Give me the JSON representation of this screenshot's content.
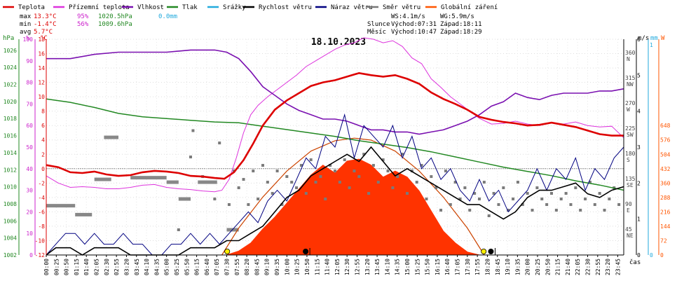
{
  "chart_data": {
    "type": "line",
    "title": "18.10.2023",
    "x_label": "čas",
    "x_ticks": [
      "00:00",
      "00:25",
      "00:50",
      "01:15",
      "01:40",
      "02:05",
      "02:30",
      "02:55",
      "03:20",
      "03:45",
      "04:10",
      "04:35",
      "05:00",
      "05:25",
      "05:50",
      "06:15",
      "06:40",
      "07:05",
      "07:30",
      "07:55",
      "08:20",
      "08:45",
      "09:10",
      "09:35",
      "10:00",
      "10:25",
      "10:50",
      "11:15",
      "11:40",
      "12:05",
      "12:30",
      "12:55",
      "13:20",
      "13:45",
      "14:10",
      "14:35",
      "15:00",
      "15:25",
      "15:50",
      "16:15",
      "16:40",
      "17:05",
      "17:30",
      "17:55",
      "18:20",
      "18:45",
      "19:10",
      "19:35",
      "20:00",
      "20:25",
      "20:50",
      "21:15",
      "21:40",
      "22:05",
      "22:30",
      "22:55",
      "23:20",
      "23:45"
    ],
    "legend": [
      {
        "name": "Teplota",
        "color": "#dd0000"
      },
      {
        "name": "Přízemní teplota",
        "color": "#dd33dd"
      },
      {
        "name": "Vlhkost",
        "color": "#7a10b0"
      },
      {
        "name": "Tlak",
        "color": "#228822"
      },
      {
        "name": "Srážky",
        "color": "#22aadd"
      },
      {
        "name": "Rychlost větru",
        "color": "#000000"
      },
      {
        "name": "Náraz větru",
        "color": "#000080"
      },
      {
        "name": "Směr větru",
        "color": "#777777"
      },
      {
        "name": "Globální záření",
        "color": "#ff5500"
      }
    ],
    "stats": {
      "max_label": "max",
      "max_temp": "13.3°C",
      "max_hum": "95%",
      "max_press": "1020.5hPa",
      "rain": "0.0mm",
      "min_label": "min",
      "min_temp": "-1.4°C",
      "min_hum": "56%",
      "min_press": "1009.6hPa",
      "avg_label": "avg",
      "avg_temp": "5.7°C",
      "ws": "WS:4.1m/s",
      "wg": "WG:5.9m/s",
      "sun_label": "Slunce",
      "sun_rise": "Východ:07:31",
      "sun_set": "Západ:18:11",
      "moon_label": "Měsíc",
      "moon_rise": "Východ:10:47",
      "moon_set": "Západ:18:29"
    },
    "axes": {
      "pressure": {
        "unit": "hPa",
        "ticks": [
          "1026",
          "1024",
          "1022",
          "1020",
          "1018",
          "1016",
          "1014",
          "1012",
          "1010",
          "1008",
          "1006",
          "1004",
          "1002"
        ],
        "range": [
          1002,
          1027.3
        ],
        "color": "#228822"
      },
      "humidity": {
        "unit": "%",
        "ticks": [
          "100",
          "90",
          "80",
          "70",
          "60",
          "50",
          "40",
          "30",
          "20",
          "10",
          "0"
        ],
        "range": [
          0,
          100
        ],
        "color": "#cc22cc"
      },
      "temperature": {
        "unit": "°C",
        "ticks": [
          "18",
          "16",
          "14",
          "12",
          "10",
          "8",
          "6",
          "4",
          "2",
          "0",
          "-2",
          "-4",
          "-6",
          "-8",
          "-10",
          "-12"
        ],
        "range": [
          -12,
          18
        ],
        "color": "#dd0000"
      },
      "direction": {
        "ticks": [
          "360",
          "N",
          "315",
          "NW",
          "270",
          "W",
          "225",
          "SW",
          "180",
          "S",
          "135",
          "SE",
          "90",
          "E",
          "45",
          "NE"
        ],
        "range": [
          0,
          360
        ]
      },
      "wind": {
        "unit": "m/s",
        "ticks": [
          "6",
          "5",
          "4",
          "3",
          "2",
          "1",
          "0"
        ],
        "range": [
          0,
          6
        ]
      },
      "rain": {
        "unit": "mm",
        "ticks": [
          "1",
          "0"
        ],
        "range": [
          0,
          1
        ],
        "color": "#22aadd"
      },
      "radiation": {
        "unit": "W",
        "ticks": [
          "648",
          "576",
          "504",
          "432",
          "360",
          "288",
          "216",
          "144",
          "72",
          "0"
        ],
        "range": [
          0,
          1080
        ],
        "color": "#ff5500"
      }
    },
    "series": {
      "temperature_x_h": [
        0,
        0.5,
        1,
        1.5,
        2,
        2.5,
        3,
        3.5,
        4,
        4.5,
        5,
        5.5,
        6,
        6.5,
        7,
        7.4,
        7.8,
        8.2,
        8.6,
        9,
        9.5,
        10,
        10.5,
        11,
        11.5,
        12,
        12.5,
        13,
        13.5,
        14,
        14.5,
        15,
        15.5,
        16,
        16.5,
        17,
        17.5,
        18,
        18.5,
        19,
        19.5,
        20,
        20.5,
        21,
        21.5,
        22,
        22.5,
        23,
        23.5,
        24
      ],
      "temperature": [
        0.5,
        0.2,
        -0.5,
        -0.6,
        -0.4,
        -0.8,
        -1,
        -0.9,
        -0.5,
        -0.3,
        -0.4,
        -0.6,
        -1,
        -1.1,
        -1.3,
        -1.4,
        -0.5,
        1.2,
        3.5,
        6,
        8.2,
        9.5,
        10.5,
        11.5,
        12,
        12.3,
        12.8,
        13.3,
        13,
        12.8,
        13,
        12.5,
        11.8,
        10.6,
        9.7,
        9,
        8.2,
        7.2,
        6.8,
        6.5,
        6.3,
        6,
        6.1,
        6.4,
        6.1,
        5.8,
        5.3,
        4.8,
        4.6,
        4.6
      ],
      "ground_temp_x_h": [
        0,
        0.5,
        1,
        1.5,
        2,
        2.5,
        3,
        3.5,
        4,
        4.5,
        5,
        5.5,
        6,
        6.5,
        7,
        7.3,
        7.6,
        7.9,
        8.2,
        8.5,
        8.8,
        9.2,
        9.6,
        10,
        10.4,
        10.8,
        11.2,
        11.6,
        12,
        12.4,
        12.8,
        13.2,
        13.6,
        14,
        14.4,
        14.8,
        15.2,
        15.6,
        16,
        16.4,
        16.8,
        17.2,
        17.6,
        18,
        18.5,
        19,
        19.5,
        20,
        20.5,
        21,
        21.5,
        22,
        22.5,
        23,
        23.5,
        24
      ],
      "ground_temp": [
        -1,
        -2,
        -2.6,
        -2.5,
        -2.6,
        -2.8,
        -2.8,
        -2.6,
        -2.3,
        -2.2,
        -2.6,
        -2.8,
        -2.9,
        -3.1,
        -3.2,
        -3,
        -1.5,
        1.5,
        5,
        7.5,
        8.8,
        10,
        11,
        12,
        13,
        14.2,
        15,
        15.8,
        16.6,
        17.2,
        17.5,
        18.2,
        18,
        17.5,
        17.8,
        17,
        15.4,
        14.6,
        12.5,
        11.3,
        10,
        9,
        8,
        7,
        6.2,
        6.3,
        6.6,
        6.2,
        6,
        6.4,
        6.2,
        6.5,
        6,
        5.8,
        5.9,
        4.3
      ],
      "humidity_x_h": [
        0,
        1,
        2,
        3,
        4,
        5,
        6,
        7,
        7.5,
        8,
        8.5,
        9,
        9.5,
        10,
        10.5,
        11,
        11.5,
        12,
        12.5,
        13,
        13.5,
        14,
        14.5,
        15,
        15.5,
        16,
        16.5,
        17,
        17.5,
        18,
        18.5,
        19,
        19.5,
        20,
        20.5,
        21,
        21.5,
        22,
        22.5,
        23,
        23.5,
        24
      ],
      "humidity": [
        91,
        91,
        93,
        94,
        94,
        94,
        95,
        95,
        94,
        91,
        85,
        78,
        74,
        70,
        67,
        65,
        63,
        63,
        62,
        60,
        58,
        58,
        57,
        57,
        56,
        57,
        58,
        60,
        62,
        65,
        69,
        71,
        75,
        73,
        72,
        74,
        75,
        75,
        75,
        76,
        76,
        77
      ],
      "pressure_x_h": [
        0,
        1,
        2,
        3,
        4,
        5,
        6,
        7,
        8,
        9,
        10,
        11,
        12,
        13,
        14,
        15,
        16,
        17,
        18,
        19,
        20,
        21,
        22,
        23,
        24
      ],
      "pressure": [
        1020.3,
        1019.9,
        1019.3,
        1018.6,
        1018.2,
        1018,
        1017.8,
        1017.6,
        1017.5,
        1017.1,
        1016.7,
        1016.3,
        1015.9,
        1015.4,
        1015,
        1014.6,
        1014.1,
        1013.5,
        1012.9,
        1012.3,
        1011.8,
        1011.3,
        1010.7,
        1010.2,
        1009.6
      ],
      "radiation_x_h": [
        7.5,
        8,
        8.5,
        9,
        9.5,
        10,
        10.5,
        11,
        11.5,
        12,
        12.5,
        13,
        13.5,
        14,
        14.5,
        15,
        15.5,
        16,
        16.5,
        17,
        17.5,
        18
      ],
      "radiation": [
        0,
        20,
        60,
        130,
        190,
        260,
        330,
        400,
        450,
        410,
        470,
        480,
        450,
        390,
        420,
        390,
        320,
        220,
        120,
        60,
        15,
        0
      ],
      "clear_sky_x_h": [
        7.3,
        8,
        9,
        10,
        11,
        12,
        12.8,
        13.5,
        14.5,
        15.5,
        16.5,
        17.5,
        18.2
      ],
      "clear_sky": [
        0,
        135,
        290,
        420,
        520,
        572,
        585,
        575,
        520,
        420,
        290,
        135,
        0
      ],
      "wind_speed_x_h": [
        0,
        0.4,
        1,
        1.5,
        2,
        2.5,
        3,
        3.5,
        4,
        4.5,
        5,
        5.5,
        6,
        6.5,
        7,
        7.5,
        8,
        8.5,
        9,
        9.5,
        10,
        10.5,
        11,
        11.5,
        12,
        12.5,
        13,
        13.5,
        14,
        14.5,
        15,
        15.5,
        16,
        16.5,
        17,
        17.5,
        18,
        18.5,
        19,
        19.5,
        20,
        20.5,
        21,
        21.5,
        22,
        22.5,
        23,
        23.5,
        24
      ],
      "wind_speed": [
        0,
        0.2,
        0.2,
        0,
        0.2,
        0.2,
        0.2,
        0,
        0,
        0,
        0,
        0,
        0.2,
        0.2,
        0.2,
        0.4,
        0.4,
        0.6,
        0.8,
        1.2,
        1.6,
        1.8,
        2.2,
        2.4,
        2.6,
        2.8,
        2.6,
        3,
        2.6,
        2.2,
        2.4,
        2.2,
        2,
        1.8,
        1.6,
        1.4,
        1.4,
        1.2,
        1,
        1.2,
        1.6,
        1.8,
        1.8,
        1.9,
        2,
        1.7,
        1.6,
        1.8,
        1.9
      ],
      "wind_gust_x_h": [
        0,
        0.4,
        0.8,
        1.2,
        1.6,
        2,
        2.4,
        2.8,
        3.2,
        3.6,
        4,
        4.4,
        4.8,
        5.2,
        5.6,
        6,
        6.4,
        6.8,
        7.2,
        7.6,
        8,
        8.4,
        8.8,
        9.2,
        9.6,
        10,
        10.4,
        10.8,
        11.2,
        11.6,
        12,
        12.4,
        12.8,
        13.2,
        13.6,
        14,
        14.4,
        14.8,
        15.2,
        15.6,
        16,
        16.4,
        16.8,
        17.2,
        17.6,
        18,
        18.4,
        18.8,
        19.2,
        19.6,
        20,
        20.4,
        20.8,
        21.2,
        21.6,
        22,
        22.4,
        22.8,
        23.2,
        23.6,
        24
      ],
      "wind_gust": [
        0,
        0.3,
        0.6,
        0.6,
        0.3,
        0.6,
        0.3,
        0.3,
        0.6,
        0.3,
        0.3,
        0,
        0,
        0.3,
        0.3,
        0.6,
        0.3,
        0.6,
        0.3,
        0.6,
        0.9,
        1.2,
        0.9,
        1.5,
        1.8,
        1.5,
        2.1,
        2.7,
        2.4,
        3.3,
        3,
        3.9,
        2.7,
        3.6,
        3.3,
        3,
        3.6,
        2.7,
        3.3,
        2.4,
        2.7,
        2.1,
        2.4,
        1.8,
        1.5,
        2.1,
        1.5,
        1.8,
        1.2,
        1.5,
        1.8,
        2.4,
        1.8,
        2.4,
        2.1,
        2.7,
        1.8,
        2.4,
        2.1,
        2.7,
        3
      ],
      "wind_direction_x_h": [
        5.5,
        6,
        6.1,
        6.5,
        7,
        7.2,
        7.6,
        7.8,
        8,
        8.2,
        8.4,
        8.6,
        8.8,
        9,
        9.2,
        9.4,
        9.6,
        9.8,
        10,
        10.2,
        10.4,
        10.6,
        10.8,
        11,
        11.2,
        11.4,
        11.6,
        11.8,
        12,
        12.2,
        12.4,
        12.6,
        12.8,
        13,
        13.2,
        13.4,
        13.6,
        13.8,
        14,
        14.2,
        14.4,
        14.6,
        14.8,
        15,
        15.2,
        15.4,
        15.6,
        15.8,
        16,
        16.2,
        16.4,
        16.6,
        16.8,
        17,
        17.2,
        17.4,
        17.6,
        17.8,
        18,
        18.2,
        18.4,
        18.6,
        18.8,
        19,
        19.2,
        19.4,
        19.6,
        19.8,
        20,
        20.2,
        20.4,
        20.6,
        20.8,
        21,
        21.2,
        21.4,
        21.6,
        21.8,
        22,
        22.2,
        22.4,
        22.6,
        22.8,
        23,
        23.2,
        23.4,
        23.6,
        23.8
      ],
      "wind_direction": [
        45,
        175,
        222,
        140,
        100,
        200,
        90,
        150,
        120,
        135,
        90,
        150,
        100,
        160,
        130,
        110,
        150,
        90,
        140,
        130,
        120,
        160,
        110,
        170,
        130,
        140,
        100,
        160,
        150,
        130,
        170,
        120,
        150,
        140,
        180,
        110,
        160,
        130,
        170,
        150,
        120,
        140,
        180,
        110,
        150,
        130,
        160,
        100,
        140,
        120,
        80,
        150,
        90,
        130,
        100,
        120,
        80,
        110,
        100,
        130,
        70,
        110,
        90,
        120,
        80,
        100,
        130,
        90,
        110,
        80,
        120,
        100,
        90,
        110,
        80,
        100,
        110,
        90,
        120,
        80,
        100,
        130,
        90,
        110,
        80,
        100,
        120,
        90
      ],
      "wind_direction_shade": [
        {
          "from_h": 0.0,
          "to_h": 1.2,
          "deg": 88
        },
        {
          "from_h": 1.2,
          "to_h": 1.9,
          "deg": 72
        },
        {
          "from_h": 2.0,
          "to_h": 2.7,
          "deg": 135
        },
        {
          "from_h": 2.4,
          "to_h": 3.0,
          "deg": 210
        },
        {
          "from_h": 3.5,
          "to_h": 5.0,
          "deg": 138
        },
        {
          "from_h": 5.0,
          "to_h": 5.5,
          "deg": 130
        },
        {
          "from_h": 5.5,
          "to_h": 6.0,
          "deg": 100
        },
        {
          "from_h": 6.3,
          "to_h": 7.1,
          "deg": 130
        },
        {
          "from_h": 7.5,
          "to_h": 8.0,
          "deg": 45
        }
      ],
      "markers": [
        {
          "type": "sunrise",
          "x_h": 7.52,
          "color": "#ffee00"
        },
        {
          "type": "moonrise",
          "x_h": 10.78,
          "color": "#000000"
        },
        {
          "type": "sunset",
          "x_h": 18.18,
          "color": "#ffee00"
        },
        {
          "type": "moonset",
          "x_h": 18.48,
          "color": "#000000"
        }
      ]
    }
  }
}
